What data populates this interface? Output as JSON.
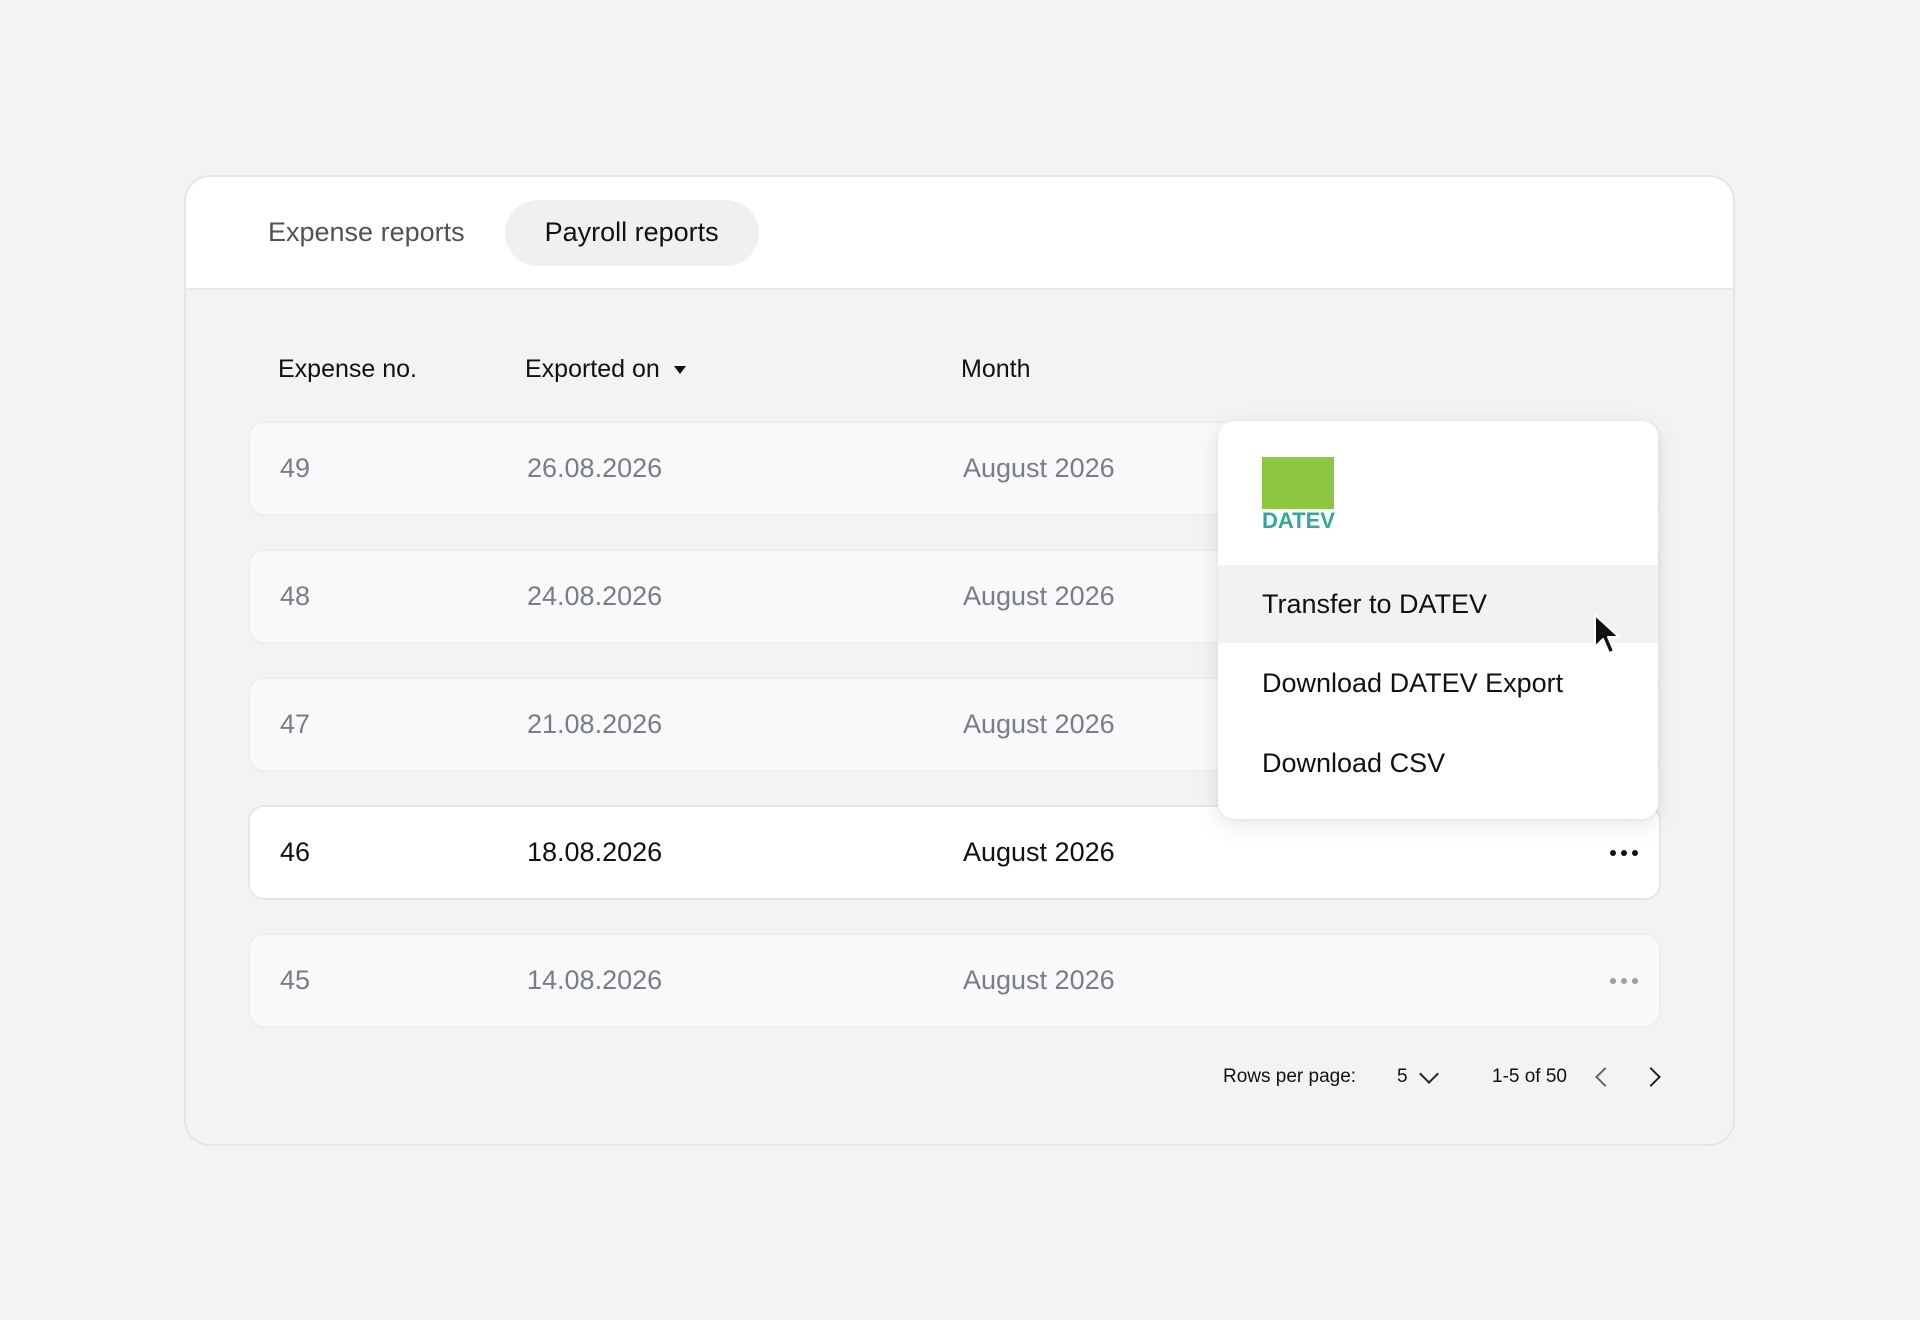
{
  "tabs": [
    {
      "label": "Expense reports",
      "active": false
    },
    {
      "label": "Payroll reports",
      "active": true
    }
  ],
  "table": {
    "headers": {
      "no": "Expense no.",
      "date": "Exported on",
      "month": "Month"
    },
    "rows": [
      {
        "no": "49",
        "date": "26.08.2026",
        "month": "August 2026"
      },
      {
        "no": "48",
        "date": "24.08.2026",
        "month": "August 2026"
      },
      {
        "no": "47",
        "date": "21.08.2026",
        "month": "August 2026"
      },
      {
        "no": "46",
        "date": "18.08.2026",
        "month": "August 2026"
      },
      {
        "no": "45",
        "date": "14.08.2026",
        "month": "August 2026"
      }
    ]
  },
  "pagination": {
    "rows_label": "Rows per page:",
    "rows_value": "5",
    "range": "1-5 of 50"
  },
  "menu": {
    "logo_text": "DATEV",
    "items": [
      "Transfer to DATEV",
      "Download DATEV Export",
      "Download CSV"
    ]
  },
  "colors": {
    "datev_green": "#8dc63f",
    "datev_teal": "#2fa8a0"
  }
}
